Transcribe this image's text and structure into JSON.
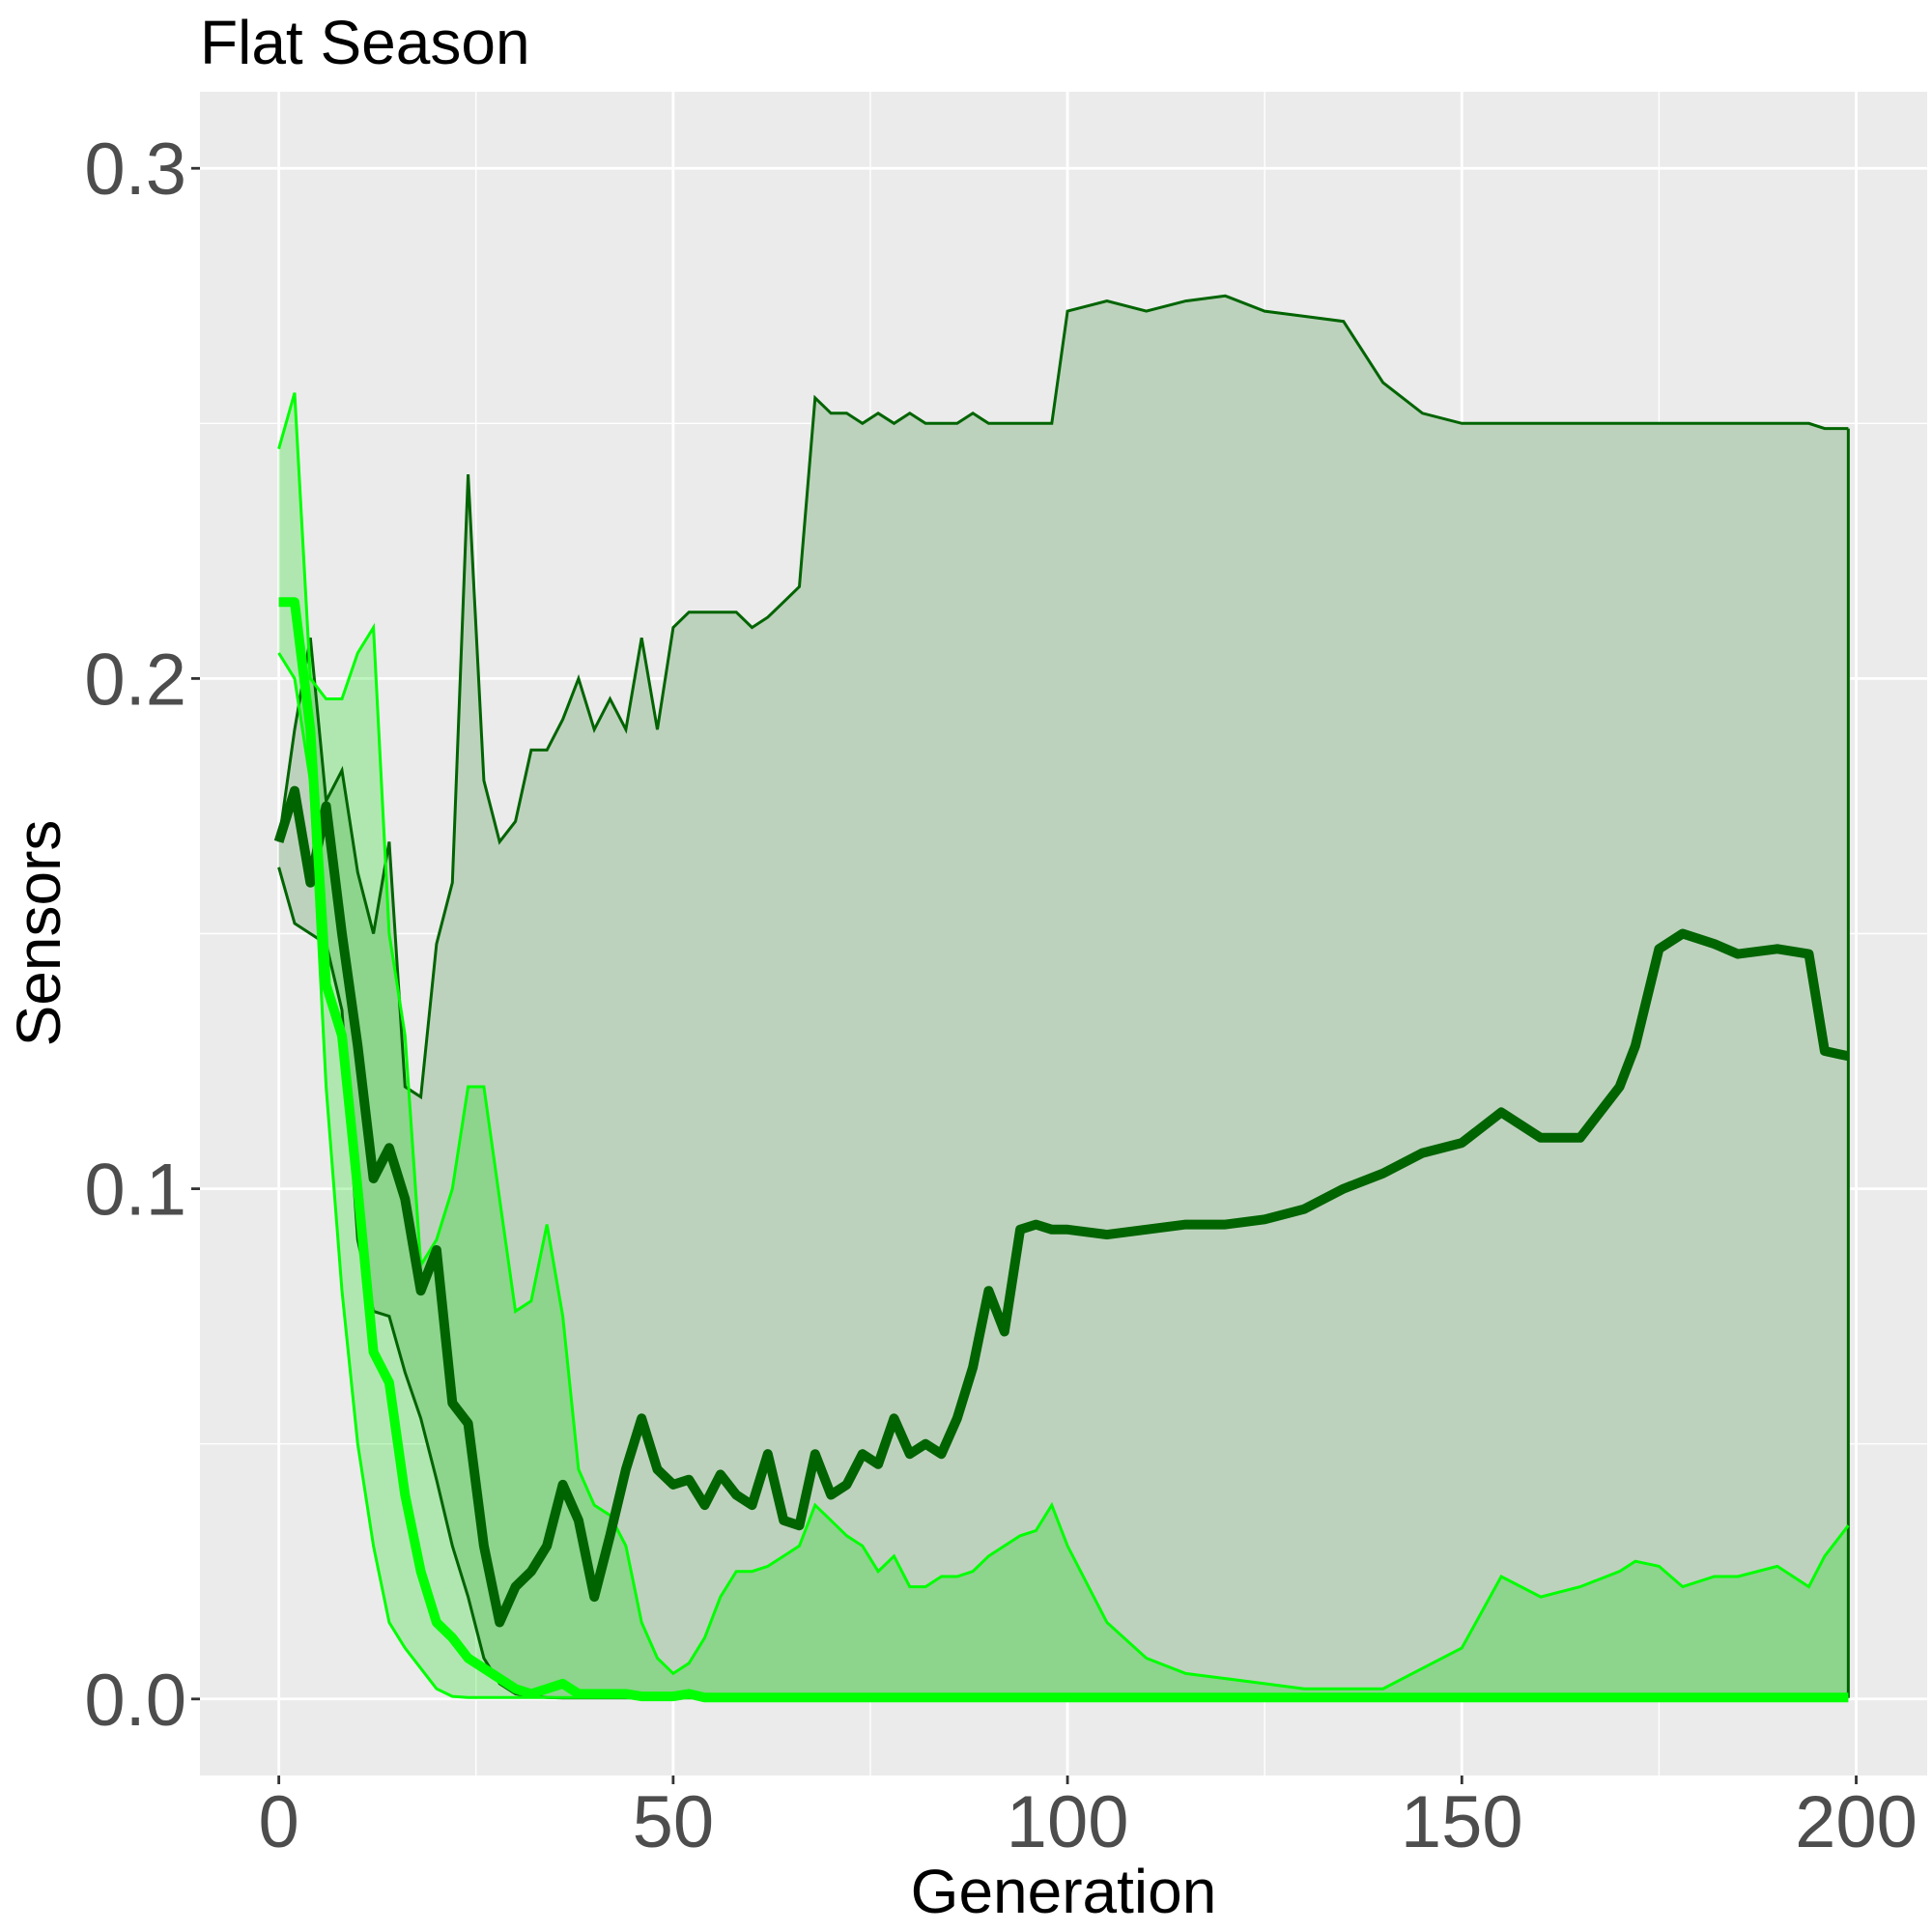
{
  "chart_data": {
    "type": "line",
    "title": "Flat Season",
    "xlabel": "Generation",
    "ylabel": "Sensors",
    "xlim": [
      -10,
      209
    ],
    "ylim": [
      -0.015,
      0.315
    ],
    "x_ticks": [
      0,
      50,
      100,
      150,
      200
    ],
    "x_tick_labels": [
      "0",
      "50",
      "100",
      "150",
      "200"
    ],
    "y_ticks": [
      0.0,
      0.1,
      0.2,
      0.3
    ],
    "y_tick_labels": [
      "0.0",
      "0.1",
      "0.2",
      "0.3"
    ],
    "grid": true,
    "legend": "none",
    "colors": {
      "panel_bg": "#ebebeb",
      "grid": "#ffffff",
      "dark_series": "#006400",
      "dark_band": "#bdd2bd",
      "light_series": "#00ff00",
      "light_band": "#00dd00"
    },
    "series": [
      {
        "color": "#006400",
        "x": [
          0,
          2,
          4,
          6,
          8,
          10,
          12,
          14,
          16,
          18,
          20,
          22,
          24,
          26,
          28,
          30,
          32,
          34,
          36,
          38,
          40,
          42,
          44,
          46,
          48,
          50,
          52,
          54,
          56,
          58,
          60,
          62,
          64,
          66,
          68,
          70,
          72,
          74,
          76,
          78,
          80,
          82,
          84,
          86,
          88,
          90,
          92,
          94,
          96,
          98,
          100,
          105,
          110,
          115,
          120,
          125,
          130,
          135,
          140,
          145,
          150,
          155,
          160,
          165,
          170,
          172,
          175,
          178,
          182,
          185,
          190,
          194,
          196,
          199
        ],
        "mean": [
          0.168,
          0.178,
          0.16,
          0.175,
          0.15,
          0.128,
          0.102,
          0.108,
          0.098,
          0.08,
          0.088,
          0.058,
          0.054,
          0.03,
          0.015,
          0.022,
          0.025,
          0.03,
          0.042,
          0.035,
          0.02,
          0.032,
          0.045,
          0.055,
          0.045,
          0.042,
          0.043,
          0.038,
          0.044,
          0.04,
          0.038,
          0.048,
          0.035,
          0.034,
          0.048,
          0.04,
          0.042,
          0.048,
          0.046,
          0.055,
          0.048,
          0.05,
          0.048,
          0.055,
          0.065,
          0.08,
          0.072,
          0.092,
          0.093,
          0.092,
          0.092,
          0.091,
          0.092,
          0.093,
          0.093,
          0.094,
          0.096,
          0.1,
          0.103,
          0.107,
          0.109,
          0.115,
          0.11,
          0.11,
          0.12,
          0.128,
          0.147,
          0.15,
          0.148,
          0.146,
          0.147,
          0.146,
          0.127,
          0.126
        ],
        "upper": [
          0.168,
          0.19,
          0.208,
          0.176,
          0.182,
          0.162,
          0.15,
          0.168,
          0.12,
          0.118,
          0.148,
          0.16,
          0.24,
          0.18,
          0.168,
          0.172,
          0.186,
          0.186,
          0.192,
          0.2,
          0.19,
          0.196,
          0.19,
          0.208,
          0.19,
          0.21,
          0.213,
          0.213,
          0.213,
          0.213,
          0.21,
          0.212,
          0.215,
          0.218,
          0.255,
          0.252,
          0.252,
          0.25,
          0.252,
          0.25,
          0.252,
          0.25,
          0.25,
          0.25,
          0.252,
          0.25,
          0.25,
          0.25,
          0.25,
          0.25,
          0.272,
          0.274,
          0.272,
          0.274,
          0.275,
          0.272,
          0.271,
          0.27,
          0.258,
          0.252,
          0.25,
          0.25,
          0.25,
          0.25,
          0.25,
          0.25,
          0.25,
          0.25,
          0.25,
          0.25,
          0.25,
          0.25,
          0.249,
          0.249
        ],
        "lower": [
          0.163,
          0.152,
          0.15,
          0.148,
          0.135,
          0.09,
          0.076,
          0.075,
          0.064,
          0.055,
          0.043,
          0.03,
          0.02,
          0.008,
          0.003,
          0.001,
          0.0005,
          0.0003,
          0.0002,
          0.0002,
          0.0002,
          0.0002,
          0.0002,
          0.0002,
          0.0002,
          0.0002,
          0.0002,
          0.0002,
          0.0002,
          0.0002,
          0.0002,
          0.0002,
          0.0002,
          0.0002,
          0.0002,
          0.0002,
          0.0002,
          0.0002,
          0.0002,
          0.0002,
          0.0002,
          0.0002,
          0.0002,
          0.0002,
          0.0002,
          0.0002,
          0.0002,
          0.0002,
          0.0002,
          0.0002,
          0.0002,
          0.0002,
          0.0002,
          0.0002,
          0.0002,
          0.0002,
          0.0002,
          0.0002,
          0.0002,
          0.0002,
          0.0002,
          0.0002,
          0.0002,
          0.0002,
          0.0002,
          0.0002,
          0.0002,
          0.0002,
          0.0002,
          0.0002,
          0.0002,
          0.0002,
          0.0002,
          0.0002
        ]
      },
      {
        "color": "#00ff00",
        "x": [
          0,
          2,
          4,
          6,
          8,
          10,
          12,
          14,
          16,
          18,
          20,
          22,
          24,
          26,
          28,
          30,
          32,
          34,
          36,
          38,
          40,
          42,
          44,
          46,
          48,
          50,
          52,
          54,
          56,
          58,
          60,
          62,
          64,
          66,
          68,
          70,
          72,
          74,
          76,
          78,
          80,
          82,
          84,
          86,
          88,
          90,
          92,
          94,
          96,
          98,
          100,
          105,
          110,
          115,
          120,
          125,
          130,
          135,
          140,
          145,
          150,
          155,
          160,
          165,
          170,
          172,
          175,
          178,
          182,
          185,
          190,
          194,
          196,
          199
        ],
        "mean": [
          0.215,
          0.215,
          0.19,
          0.14,
          0.13,
          0.1,
          0.068,
          0.062,
          0.04,
          0.025,
          0.015,
          0.012,
          0.008,
          0.006,
          0.004,
          0.002,
          0.001,
          0.002,
          0.003,
          0.001,
          0.001,
          0.001,
          0.001,
          0.0005,
          0.0005,
          0.0005,
          0.001,
          0.0003,
          0.0003,
          0.0003,
          0.0003,
          0.0003,
          0.0003,
          0.0003,
          0.0003,
          0.0003,
          0.0003,
          0.0003,
          0.0003,
          0.0003,
          0.0003,
          0.0003,
          0.0003,
          0.0003,
          0.0003,
          0.0003,
          0.0003,
          0.0003,
          0.0003,
          0.0003,
          0.0003,
          0.0003,
          0.0003,
          0.0003,
          0.0003,
          0.0003,
          0.0003,
          0.0003,
          0.0003,
          0.0003,
          0.0003,
          0.0003,
          0.0003,
          0.0003,
          0.0003,
          0.0003,
          0.0003,
          0.0003,
          0.0003,
          0.0003,
          0.0003,
          0.0003,
          0.0003,
          0.0003
        ],
        "upper": [
          0.245,
          0.256,
          0.2,
          0.196,
          0.196,
          0.205,
          0.21,
          0.15,
          0.13,
          0.085,
          0.09,
          0.1,
          0.12,
          0.12,
          0.098,
          0.076,
          0.078,
          0.093,
          0.075,
          0.045,
          0.038,
          0.036,
          0.03,
          0.015,
          0.008,
          0.005,
          0.007,
          0.012,
          0.02,
          0.025,
          0.025,
          0.026,
          0.028,
          0.03,
          0.038,
          0.035,
          0.032,
          0.03,
          0.025,
          0.028,
          0.022,
          0.022,
          0.024,
          0.024,
          0.025,
          0.028,
          0.03,
          0.032,
          0.033,
          0.038,
          0.03,
          0.015,
          0.008,
          0.005,
          0.004,
          0.003,
          0.002,
          0.002,
          0.002,
          0.006,
          0.01,
          0.024,
          0.02,
          0.022,
          0.025,
          0.027,
          0.026,
          0.022,
          0.024,
          0.024,
          0.026,
          0.022,
          0.028,
          0.034
        ],
        "lower": [
          0.205,
          0.2,
          0.18,
          0.12,
          0.08,
          0.05,
          0.03,
          0.015,
          0.01,
          0.006,
          0.002,
          0.0005,
          0.0003,
          0.0003,
          0.0003,
          0.0003,
          0.0003,
          0.0003,
          0.0003,
          0.0003,
          0.0003,
          0.0003,
          0.0003,
          0.0003,
          0.0003,
          0.0003,
          0.0003,
          0.0003,
          0.0003,
          0.0003,
          0.0003,
          0.0003,
          0.0003,
          0.0003,
          0.0003,
          0.0003,
          0.0003,
          0.0003,
          0.0003,
          0.0003,
          0.0003,
          0.0003,
          0.0003,
          0.0003,
          0.0003,
          0.0003,
          0.0003,
          0.0003,
          0.0003,
          0.0003,
          0.0003,
          0.0003,
          0.0003,
          0.0003,
          0.0003,
          0.0003,
          0.0003,
          0.0003,
          0.0003,
          0.0003,
          0.0003,
          0.0003,
          0.0003,
          0.0003,
          0.0003,
          0.0003,
          0.0003,
          0.0003,
          0.0003,
          0.0003,
          0.0003,
          0.0003,
          0.0003,
          0.0003
        ]
      }
    ]
  }
}
